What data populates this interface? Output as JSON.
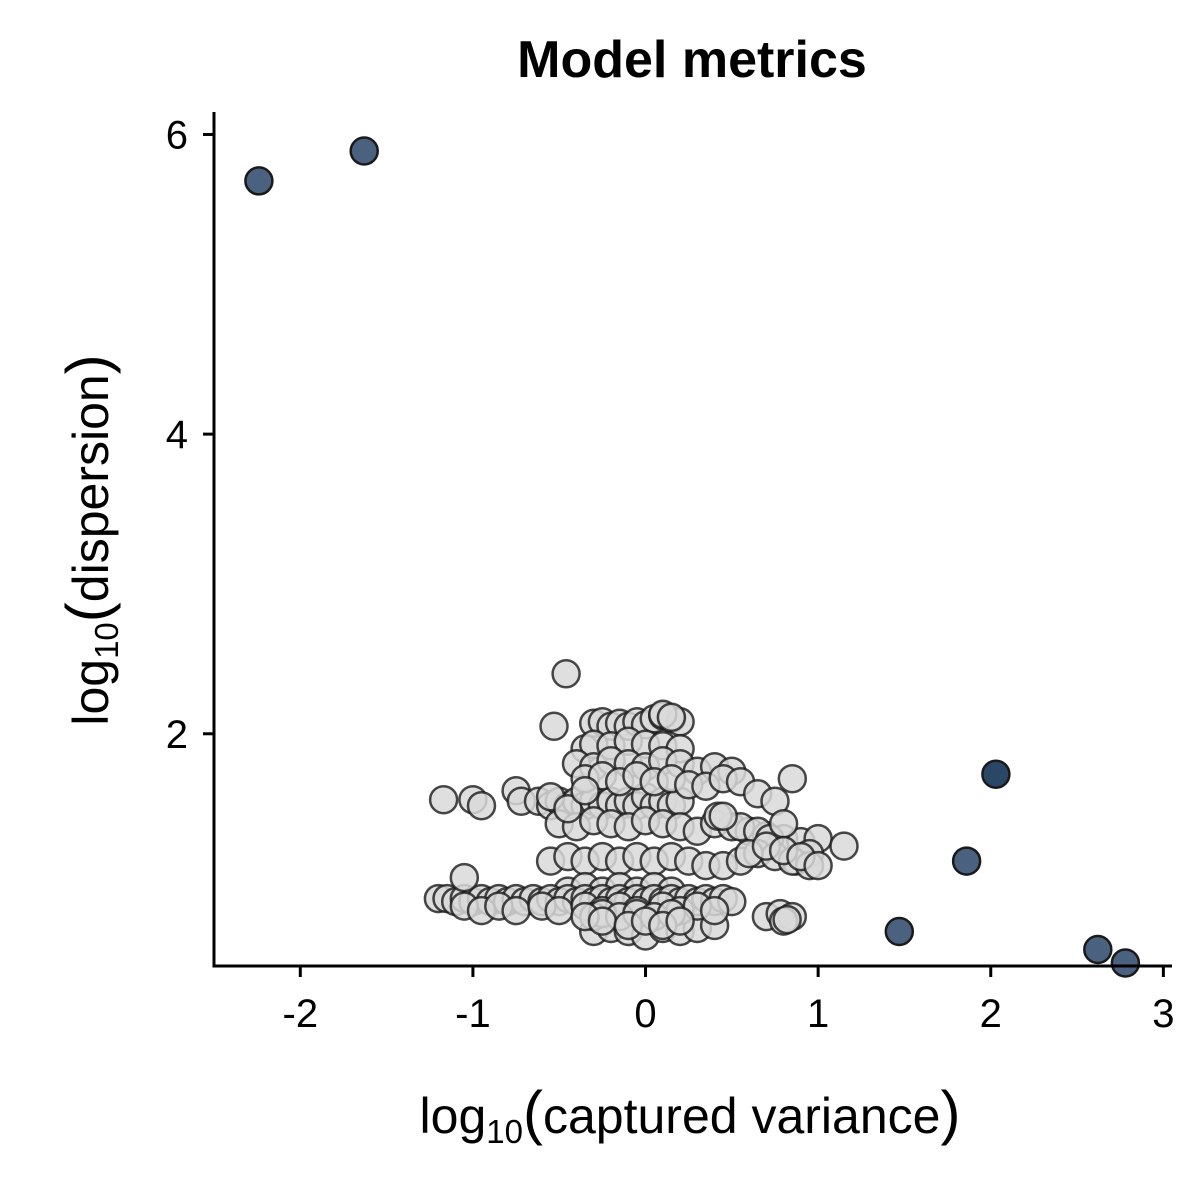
{
  "chart_data": {
    "type": "scatter",
    "title": "Model metrics",
    "xlabel": {
      "prefix": "log",
      "subscript": "10",
      "inner": "captured variance"
    },
    "ylabel": {
      "prefix": "log",
      "subscript": "10",
      "inner": "dispersion"
    },
    "xlim": [
      -2.5,
      3.05
    ],
    "ylim": [
      0.45,
      6.15
    ],
    "xticks": [
      -2,
      -1,
      0,
      1,
      2,
      3
    ],
    "yticks": [
      2,
      4,
      6
    ],
    "xtick_labels": [
      "-2",
      "-1",
      "0",
      "1",
      "2",
      "3"
    ],
    "ytick_labels": [
      "2",
      "4",
      "6"
    ],
    "grid": false,
    "legend": "none",
    "colors": {
      "highlight": "#4a6180",
      "highlight_strong": "#2a4866",
      "background": "#d9d9d9",
      "stroke": "#1a1a1a"
    },
    "series": [
      {
        "role": "highlighted",
        "x": [
          -2.24,
          -1.63,
          2.03,
          1.86,
          1.47,
          2.62,
          2.78
        ],
        "y": [
          5.69,
          5.89,
          1.73,
          1.15,
          0.68,
          0.56,
          0.47
        ],
        "emphasis": [
          0,
          0,
          1,
          0,
          0,
          0,
          0
        ]
      },
      {
        "role": "other",
        "x": [
          -0.46,
          -0.53,
          -1.17,
          -1.0,
          -0.95,
          -0.75,
          -0.72,
          -0.62,
          -0.55,
          -0.5,
          -0.45,
          -0.4,
          -0.35,
          -0.3,
          -0.25,
          -0.2,
          -0.15,
          -0.1,
          -0.05,
          0.0,
          0.05,
          0.1,
          0.15,
          0.2,
          -0.3,
          -0.25,
          -0.2,
          -0.15,
          -0.1,
          -0.05,
          0.0,
          0.05,
          0.1,
          0.15,
          0.2,
          0.1,
          0.15,
          -0.35,
          -0.3,
          -0.2,
          -0.1,
          0.0,
          0.1,
          0.2,
          -0.4,
          -0.3,
          -0.2,
          -0.1,
          0.0,
          0.1,
          0.2,
          0.3,
          0.4,
          0.5,
          -0.35,
          -0.25,
          -0.15,
          -0.05,
          0.05,
          0.15,
          0.25,
          0.35,
          0.45,
          0.55,
          0.65,
          0.75,
          0.85,
          -0.5,
          -0.4,
          -0.3,
          -0.2,
          -0.1,
          0.0,
          0.1,
          0.2,
          0.3,
          0.4,
          0.5,
          0.6,
          0.7,
          0.8,
          0.9,
          1.0,
          1.15,
          0.87,
          0.55,
          0.42,
          0.45,
          0.65,
          0.72,
          0.8,
          0.95,
          -0.55,
          -0.45,
          -0.35,
          -0.25,
          -0.15,
          -0.05,
          0.05,
          0.15,
          0.25,
          0.35,
          0.45,
          0.55,
          0.65,
          0.75,
          0.85,
          0.95,
          0.6,
          0.7,
          0.8,
          0.9,
          1.0,
          -0.45,
          -0.35,
          -0.25,
          -0.15,
          -0.05,
          0.05,
          0.15,
          -0.3,
          -0.2,
          -0.1,
          0.0,
          0.1,
          0.2,
          0.3,
          0.4,
          -1.2,
          -1.15,
          -1.1,
          -1.05,
          -1.0,
          -0.95,
          -0.9,
          -0.85,
          -0.8,
          -0.75,
          -0.7,
          -0.65,
          -0.6,
          -0.55,
          -0.5,
          -0.45,
          -0.4,
          -0.35,
          -0.3,
          -0.25,
          -0.2,
          -0.15,
          -0.1,
          -0.05,
          0.0,
          0.05,
          0.1,
          0.15,
          0.2,
          0.25,
          0.3,
          0.35,
          0.4,
          0.45,
          0.5,
          -1.05,
          -0.95,
          -0.85,
          -0.75,
          -0.6,
          -0.5,
          -0.35,
          -0.25,
          -0.15,
          -0.05,
          0.1,
          0.2,
          0.3,
          0.4,
          -1.05,
          -0.3,
          -0.25,
          -0.15,
          -0.05,
          0.05,
          0.15,
          0.7,
          0.78,
          0.85,
          0.8,
          0.82,
          -0.35,
          -0.25,
          -0.1,
          0.0,
          0.1,
          0.2,
          -0.55,
          -0.45,
          -0.35
        ],
        "y": [
          2.4,
          2.05,
          1.56,
          1.56,
          1.52,
          1.62,
          1.55,
          1.55,
          1.52,
          1.55,
          1.52,
          1.55,
          1.52,
          1.55,
          1.52,
          1.55,
          1.52,
          1.55,
          1.52,
          1.58,
          1.52,
          1.55,
          1.52,
          1.55,
          2.07,
          2.08,
          2.05,
          2.07,
          2.05,
          2.08,
          2.06,
          2.1,
          2.12,
          2.1,
          2.08,
          2.13,
          2.11,
          1.9,
          1.93,
          1.92,
          1.95,
          1.93,
          1.92,
          1.9,
          1.8,
          1.78,
          1.82,
          1.8,
          1.78,
          1.82,
          1.8,
          1.75,
          1.78,
          1.75,
          1.7,
          1.72,
          1.68,
          1.72,
          1.68,
          1.7,
          1.66,
          1.65,
          1.7,
          1.68,
          1.6,
          1.55,
          1.7,
          1.4,
          1.38,
          1.42,
          1.4,
          1.38,
          1.42,
          1.4,
          1.38,
          1.35,
          1.4,
          1.38,
          1.35,
          1.32,
          1.3,
          1.28,
          1.3,
          1.25,
          1.15,
          1.38,
          1.45,
          1.45,
          1.35,
          1.3,
          1.4,
          1.2,
          1.15,
          1.18,
          1.15,
          1.18,
          1.15,
          1.18,
          1.15,
          1.18,
          1.15,
          1.12,
          1.12,
          1.15,
          1.2,
          1.18,
          1.15,
          1.12,
          1.2,
          1.25,
          1.22,
          1.18,
          1.12,
          0.95,
          0.98,
          0.95,
          0.98,
          0.95,
          0.98,
          0.95,
          0.68,
          0.7,
          0.68,
          0.65,
          0.7,
          0.68,
          0.7,
          0.72,
          0.9,
          0.9,
          0.88,
          0.9,
          0.88,
          0.9,
          0.88,
          0.9,
          0.88,
          0.9,
          0.88,
          0.9,
          0.88,
          0.9,
          0.88,
          0.9,
          0.88,
          0.9,
          0.88,
          0.9,
          0.88,
          0.9,
          0.88,
          0.9,
          0.88,
          0.9,
          0.88,
          0.9,
          0.88,
          0.9,
          0.88,
          0.9,
          0.88,
          0.9,
          0.88,
          0.85,
          0.82,
          0.85,
          0.82,
          0.85,
          0.82,
          0.85,
          0.82,
          0.85,
          0.82,
          0.85,
          0.82,
          0.85,
          0.82,
          1.04,
          0.78,
          0.8,
          0.78,
          0.8,
          0.78,
          0.8,
          0.78,
          0.8,
          0.78,
          0.75,
          0.76,
          0.78,
          0.75,
          0.72,
          0.75,
          0.72,
          0.75,
          1.58,
          1.5,
          1.62
        ]
      }
    ]
  }
}
